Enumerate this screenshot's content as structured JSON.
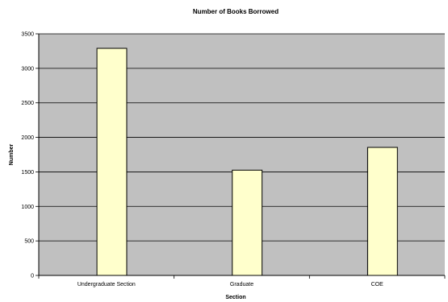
{
  "chart_data": {
    "type": "bar",
    "title": "Number of Books Borrowed",
    "xlabel": "Section",
    "ylabel": "Number",
    "categories": [
      "Undergraduate Section",
      "Graduate",
      "COE"
    ],
    "series": [
      {
        "values": [
          0,
          0,
          0
        ],
        "color": "#FFFFCC"
      },
      {
        "values": [
          3290,
          1525,
          1855
        ],
        "color": "#FFFFCC"
      }
    ],
    "ylim": [
      0,
      3500
    ],
    "yticks": [
      0,
      500,
      1000,
      1500,
      2000,
      2500,
      3000,
      3500
    ],
    "grid": true,
    "legend": "none",
    "plot_background": "#C0C0C0",
    "bar_color": "#FFFFCC"
  }
}
